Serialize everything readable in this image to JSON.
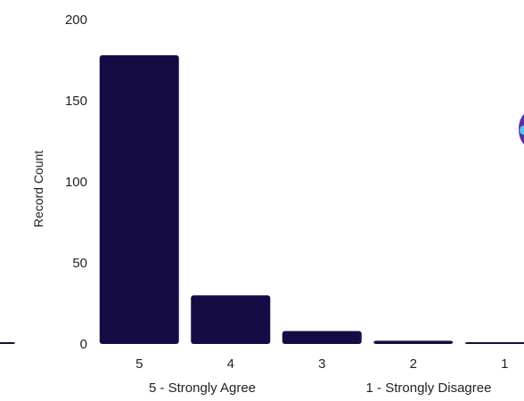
{
  "chart_data": {
    "type": "bar",
    "categories": [
      "5",
      "4",
      "3",
      "2",
      "1"
    ],
    "values": [
      178,
      30,
      8,
      2,
      1
    ],
    "partial_left_bar_value": 1,
    "ylabel": "Record Count",
    "xlabel": "",
    "ylim": [
      0,
      200
    ],
    "yticks": [
      "0",
      "50",
      "100",
      "150",
      "200"
    ],
    "ytick_values": [
      0,
      50,
      100,
      150,
      200
    ],
    "grid": false,
    "legend": "bottom",
    "legend_items": [
      "5 - Strongly Agree",
      "1 - Strongly Disagree"
    ],
    "bar_color": "#160c45"
  }
}
